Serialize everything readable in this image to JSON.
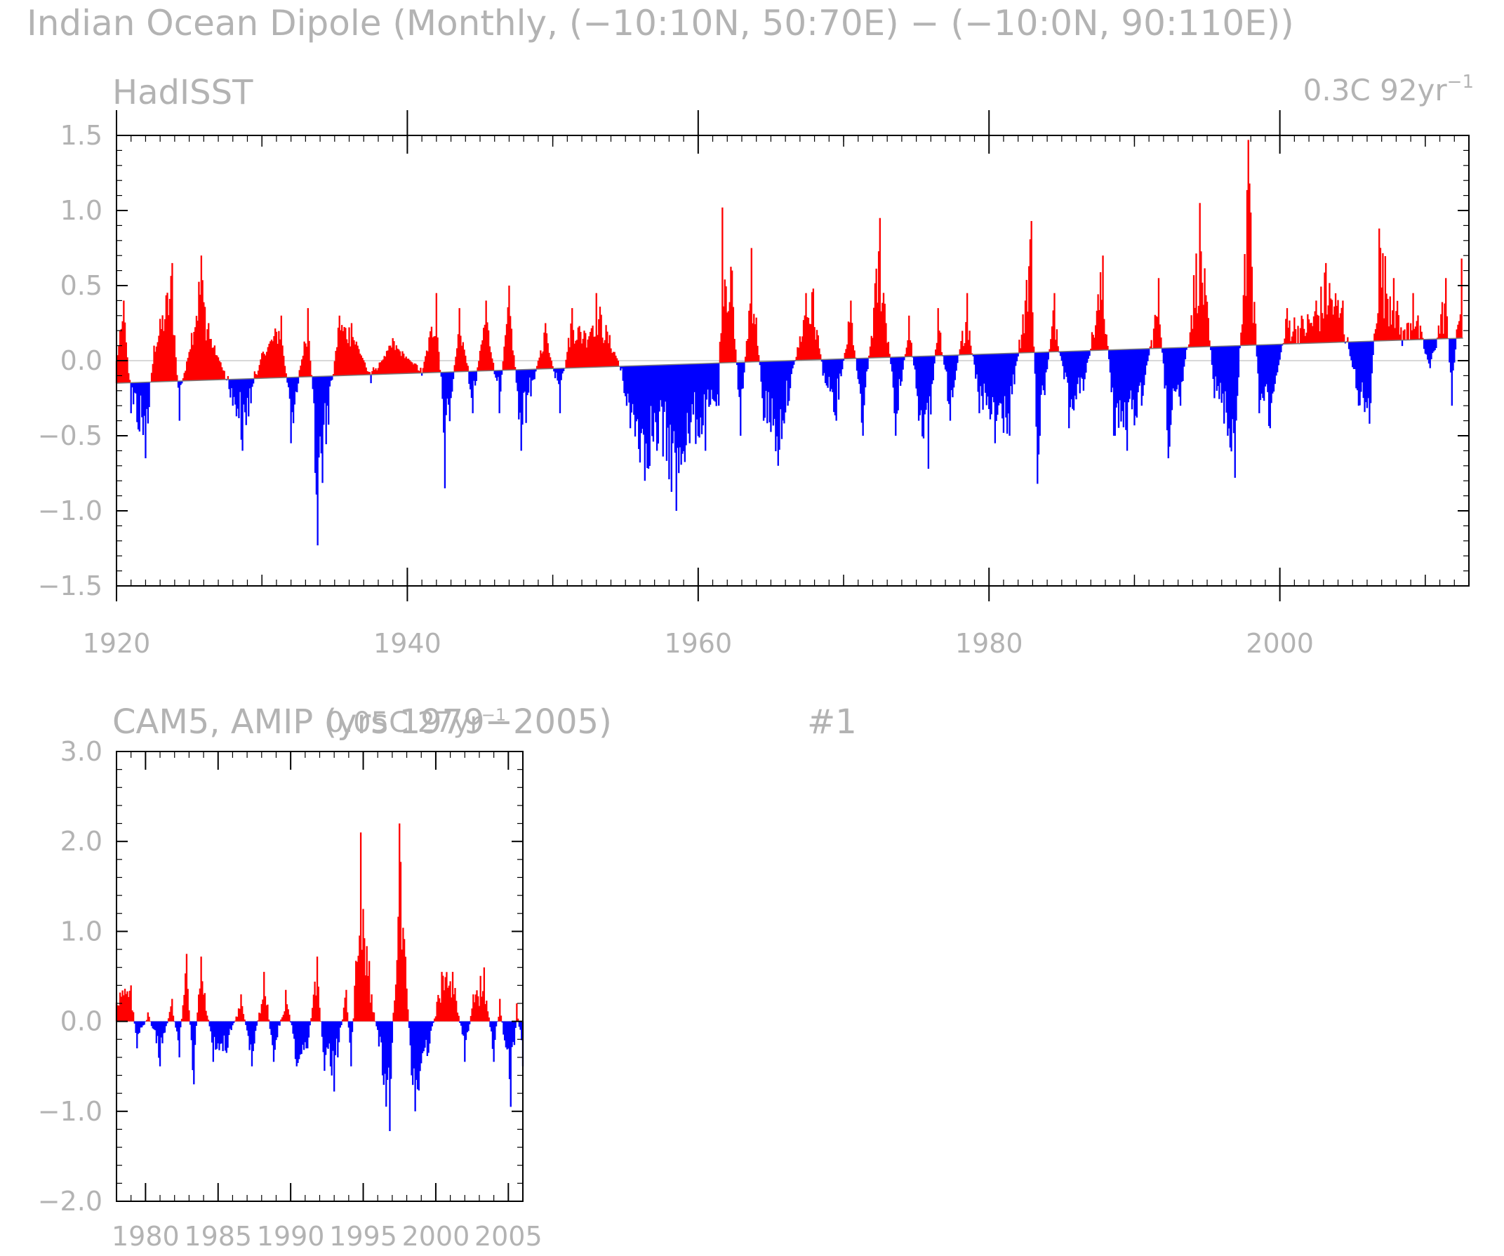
{
  "page": {
    "title": "Indian Ocean Dipole (Monthly, (−10:10N, 50:70E) − (−10:0N, 90:110E))"
  },
  "colors": {
    "positive": "#ff0000",
    "negative": "#0000ff",
    "axis": "#000000",
    "text": "#b3b3b3",
    "trend_line": "#c8c8c8"
  },
  "chart_data": [
    {
      "type": "area",
      "title": "HadISST",
      "annotation_main": "0.3C 92yr",
      "annotation_sup": "−1",
      "xlim": [
        1920,
        2013
      ],
      "ylim": [
        -1.5,
        1.5
      ],
      "x_ticks": [
        1920,
        1940,
        1960,
        1980,
        2000
      ],
      "x_tick_labels": [
        "1920",
        "1940",
        "1960",
        "1980",
        "2000"
      ],
      "y_ticks": [
        -1.5,
        -1.0,
        -0.5,
        0.0,
        0.5,
        1.0,
        1.5
      ],
      "y_tick_labels": [
        "−1.5",
        "−1.0",
        "−0.5",
        "0.0",
        "0.5",
        "1.0",
        "1.5"
      ],
      "trend": {
        "start": [
          1920,
          -0.15
        ],
        "end": [
          2012.6,
          0.15
        ]
      },
      "fill": "positive red / negative blue, relative to linear trend",
      "peaks": [
        [
          1920.0,
          0.0
        ],
        [
          1920.5,
          0.4
        ],
        [
          1921.0,
          -0.35
        ],
        [
          1922.0,
          -0.65
        ],
        [
          1922.6,
          0.1
        ],
        [
          1923.8,
          0.65
        ],
        [
          1924.3,
          -0.4
        ],
        [
          1925.8,
          0.7
        ],
        [
          1926.3,
          0.25
        ],
        [
          1928.0,
          -0.3
        ],
        [
          1928.7,
          -0.6
        ],
        [
          1930.0,
          0.05
        ],
        [
          1931.3,
          0.3
        ],
        [
          1932.0,
          -0.55
        ],
        [
          1933.2,
          0.35
        ],
        [
          1933.8,
          -1.23
        ],
        [
          1935.3,
          0.3
        ],
        [
          1936.2,
          0.25
        ],
        [
          1937.5,
          -0.15
        ],
        [
          1939.0,
          0.15
        ],
        [
          1941.0,
          -0.1
        ],
        [
          1942.0,
          0.45
        ],
        [
          1942.6,
          -0.85
        ],
        [
          1943.6,
          0.35
        ],
        [
          1944.5,
          -0.35
        ],
        [
          1945.4,
          0.4
        ],
        [
          1946.3,
          -0.35
        ],
        [
          1947.0,
          0.5
        ],
        [
          1947.8,
          -0.6
        ],
        [
          1949.5,
          0.25
        ],
        [
          1950.5,
          -0.35
        ],
        [
          1951.3,
          0.35
        ],
        [
          1952.2,
          0.2
        ],
        [
          1953.0,
          0.45
        ],
        [
          1954.5,
          0.0
        ],
        [
          1955.3,
          -0.45
        ],
        [
          1956.3,
          -0.8
        ],
        [
          1957.2,
          -0.6
        ],
        [
          1958.5,
          -1.0
        ],
        [
          1959.4,
          -0.55
        ],
        [
          1960.5,
          -0.6
        ],
        [
          1961.4,
          -0.3
        ],
        [
          1961.7,
          1.02
        ],
        [
          1962.3,
          0.6
        ],
        [
          1962.9,
          -0.5
        ],
        [
          1963.7,
          0.75
        ],
        [
          1964.5,
          -0.4
        ],
        [
          1965.5,
          -0.7
        ],
        [
          1966.2,
          -0.3
        ],
        [
          1967.4,
          0.45
        ],
        [
          1967.9,
          0.48
        ],
        [
          1968.6,
          -0.1
        ],
        [
          1969.5,
          -0.4
        ],
        [
          1970.5,
          0.4
        ],
        [
          1971.3,
          -0.5
        ],
        [
          1972.5,
          0.95
        ],
        [
          1973.6,
          -0.5
        ],
        [
          1974.5,
          0.3
        ],
        [
          1975.2,
          -0.4
        ],
        [
          1975.8,
          -0.72
        ],
        [
          1976.5,
          0.35
        ],
        [
          1977.3,
          -0.4
        ],
        [
          1978.5,
          0.45
        ],
        [
          1979.3,
          -0.35
        ],
        [
          1980.4,
          -0.55
        ],
        [
          1981.4,
          -0.5
        ],
        [
          1982.9,
          0.93
        ],
        [
          1983.3,
          -0.82
        ],
        [
          1984.5,
          0.45
        ],
        [
          1985.5,
          -0.45
        ],
        [
          1986.5,
          -0.2
        ],
        [
          1987.8,
          0.7
        ],
        [
          1988.6,
          -0.5
        ],
        [
          1989.5,
          -0.6
        ],
        [
          1990.5,
          -0.3
        ],
        [
          1991.7,
          0.55
        ],
        [
          1992.3,
          -0.65
        ],
        [
          1993.2,
          -0.3
        ],
        [
          1994.5,
          1.05
        ],
        [
          1995.5,
          -0.25
        ],
        [
          1996.4,
          -0.5
        ],
        [
          1996.9,
          -0.78
        ],
        [
          1997.8,
          1.47
        ],
        [
          1998.6,
          -0.35
        ],
        [
          1999.3,
          -0.45
        ],
        [
          2000.5,
          0.35
        ],
        [
          2001.5,
          0.3
        ],
        [
          2002.5,
          0.4
        ],
        [
          2003.2,
          0.65
        ],
        [
          2004.3,
          0.4
        ],
        [
          2005.4,
          -0.3
        ],
        [
          2006.2,
          -0.42
        ],
        [
          2006.8,
          0.88
        ],
        [
          2007.8,
          0.55
        ],
        [
          2008.5,
          0.2
        ],
        [
          2009.2,
          0.45
        ],
        [
          2010.3,
          -0.05
        ],
        [
          2011.4,
          0.55
        ],
        [
          2011.8,
          -0.3
        ],
        [
          2012.5,
          0.68
        ]
      ]
    },
    {
      "type": "area",
      "title": "CAM5, AMIP (yrs 1979−2005)",
      "label_right": "#1",
      "annotation_main": "0.05C 27yr",
      "annotation_sup": "−1",
      "xlim": [
        1978,
        2006
      ],
      "ylim": [
        -2.0,
        3.0
      ],
      "x_ticks": [
        1980,
        1985,
        1990,
        1995,
        2000,
        2005
      ],
      "x_tick_labels": [
        "1980",
        "1985",
        "1990",
        "1995",
        "2000",
        "2005"
      ],
      "y_ticks": [
        -2.0,
        -1.0,
        0.0,
        1.0,
        2.0,
        3.0
      ],
      "y_tick_labels": [
        "−2.0",
        "−1.0",
        "0.0",
        "1.0",
        "2.0",
        "3.0"
      ],
      "fill": "positive red / negative blue",
      "peaks": [
        [
          1979.0,
          0.4
        ],
        [
          1979.4,
          -0.3
        ],
        [
          1980.2,
          0.1
        ],
        [
          1981.0,
          -0.5
        ],
        [
          1981.8,
          0.25
        ],
        [
          1982.3,
          -0.4
        ],
        [
          1982.8,
          0.75
        ],
        [
          1983.3,
          -0.7
        ],
        [
          1983.8,
          0.72
        ],
        [
          1984.7,
          -0.45
        ],
        [
          1985.6,
          -0.35
        ],
        [
          1986.6,
          0.3
        ],
        [
          1987.3,
          -0.5
        ],
        [
          1988.2,
          0.55
        ],
        [
          1988.8,
          -0.45
        ],
        [
          1989.7,
          0.35
        ],
        [
          1990.4,
          -0.5
        ],
        [
          1991.2,
          -0.3
        ],
        [
          1991.8,
          0.72
        ],
        [
          1992.3,
          -0.55
        ],
        [
          1993.0,
          -0.78
        ],
        [
          1993.8,
          0.35
        ],
        [
          1994.2,
          -0.5
        ],
        [
          1994.8,
          2.1
        ],
        [
          1995.6,
          0.3
        ],
        [
          1996.3,
          -0.6
        ],
        [
          1996.8,
          -1.22
        ],
        [
          1997.5,
          2.2
        ],
        [
          1998.3,
          -0.6
        ],
        [
          1998.6,
          -1.0
        ],
        [
          1999.5,
          -0.35
        ],
        [
          2000.4,
          0.55
        ],
        [
          2001.2,
          0.55
        ],
        [
          2002.0,
          -0.45
        ],
        [
          2002.6,
          0.3
        ],
        [
          2003.3,
          0.6
        ],
        [
          2004.0,
          -0.45
        ],
        [
          2004.4,
          0.25
        ],
        [
          2005.2,
          -0.95
        ],
        [
          2005.6,
          0.2
        ],
        [
          2006.0,
          -0.5
        ]
      ]
    }
  ]
}
